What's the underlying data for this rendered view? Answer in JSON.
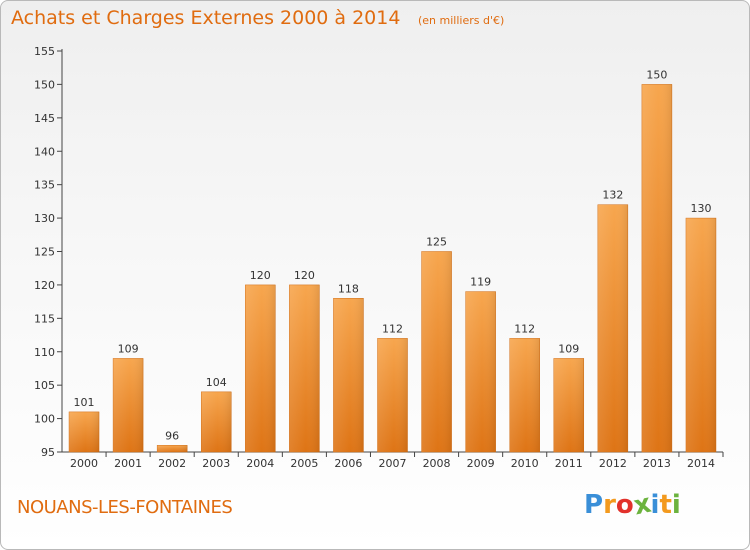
{
  "header": {
    "title": "Achats et Charges Externes 2000 à 2014",
    "subtitle": "(en milliers d'€)"
  },
  "footer": {
    "commune": "NOUANS-LES-FONTAINES",
    "logo": [
      "P",
      "r",
      "o",
      "x",
      "i",
      "t",
      "i"
    ],
    "logo_colors": [
      "#3a8fd8",
      "#f39a1e",
      "#e2312b",
      "#6cb33e",
      "#3a8fd8",
      "#f39a1e",
      "#6cb33e"
    ]
  },
  "chart_data": {
    "type": "bar",
    "title": "Achats et Charges Externes 2000 à 2014",
    "subtitle": "(en milliers d'€)",
    "categories": [
      "2000",
      "2001",
      "2002",
      "2003",
      "2004",
      "2005",
      "2006",
      "2007",
      "2008",
      "2009",
      "2010",
      "2011",
      "2012",
      "2013",
      "2014"
    ],
    "values": [
      101,
      109,
      96,
      104,
      120,
      120,
      118,
      112,
      125,
      119,
      112,
      109,
      132,
      150,
      130
    ],
    "yticks": [
      95,
      100,
      105,
      110,
      115,
      120,
      125,
      130,
      135,
      140,
      145,
      150,
      155
    ],
    "ylim": [
      95,
      155
    ],
    "grid": false,
    "bar_color_top": "#f7a64e",
    "bar_color_bottom": "#de7415",
    "label_color": "#333333"
  }
}
